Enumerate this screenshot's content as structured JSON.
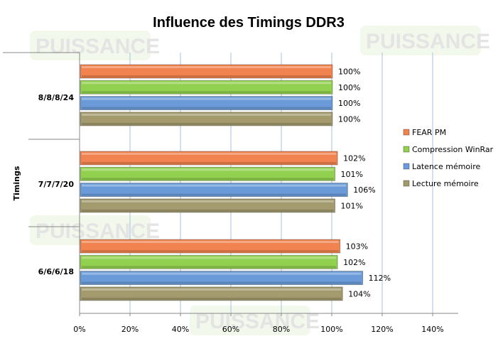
{
  "chart_data": {
    "type": "bar",
    "orientation": "horizontal",
    "title": "Influence des Timings DDR3",
    "ylabel": "Timings",
    "xlabel": "",
    "categories": [
      "8/8/8/24",
      "7/7/7/20",
      "6/6/6/18"
    ],
    "series": [
      {
        "name": "FEAR PM",
        "color": "#f0834f",
        "values": [
          100,
          102,
          103
        ],
        "labels": [
          "100%",
          "102%",
          "103%"
        ]
      },
      {
        "name": "Compression WinRar",
        "color": "#92d050",
        "values": [
          100,
          101,
          102
        ],
        "labels": [
          "100%",
          "101%",
          "102%"
        ]
      },
      {
        "name": "Latence mémoire",
        "color": "#6a9bd8",
        "values": [
          100,
          106,
          112
        ],
        "labels": [
          "100%",
          "106%",
          "112%"
        ]
      },
      {
        "name": "Lecture mémoire",
        "color": "#a39b6e",
        "values": [
          100,
          101,
          104
        ],
        "labels": [
          "100%",
          "101%",
          "104%"
        ]
      }
    ],
    "xlim": [
      0,
      140
    ],
    "xticks": [
      "0%",
      "20%",
      "40%",
      "60%",
      "80%",
      "100%",
      "120%",
      "140%"
    ],
    "grid": true,
    "legend": "right"
  },
  "watermark": "PUISSANCE PC"
}
